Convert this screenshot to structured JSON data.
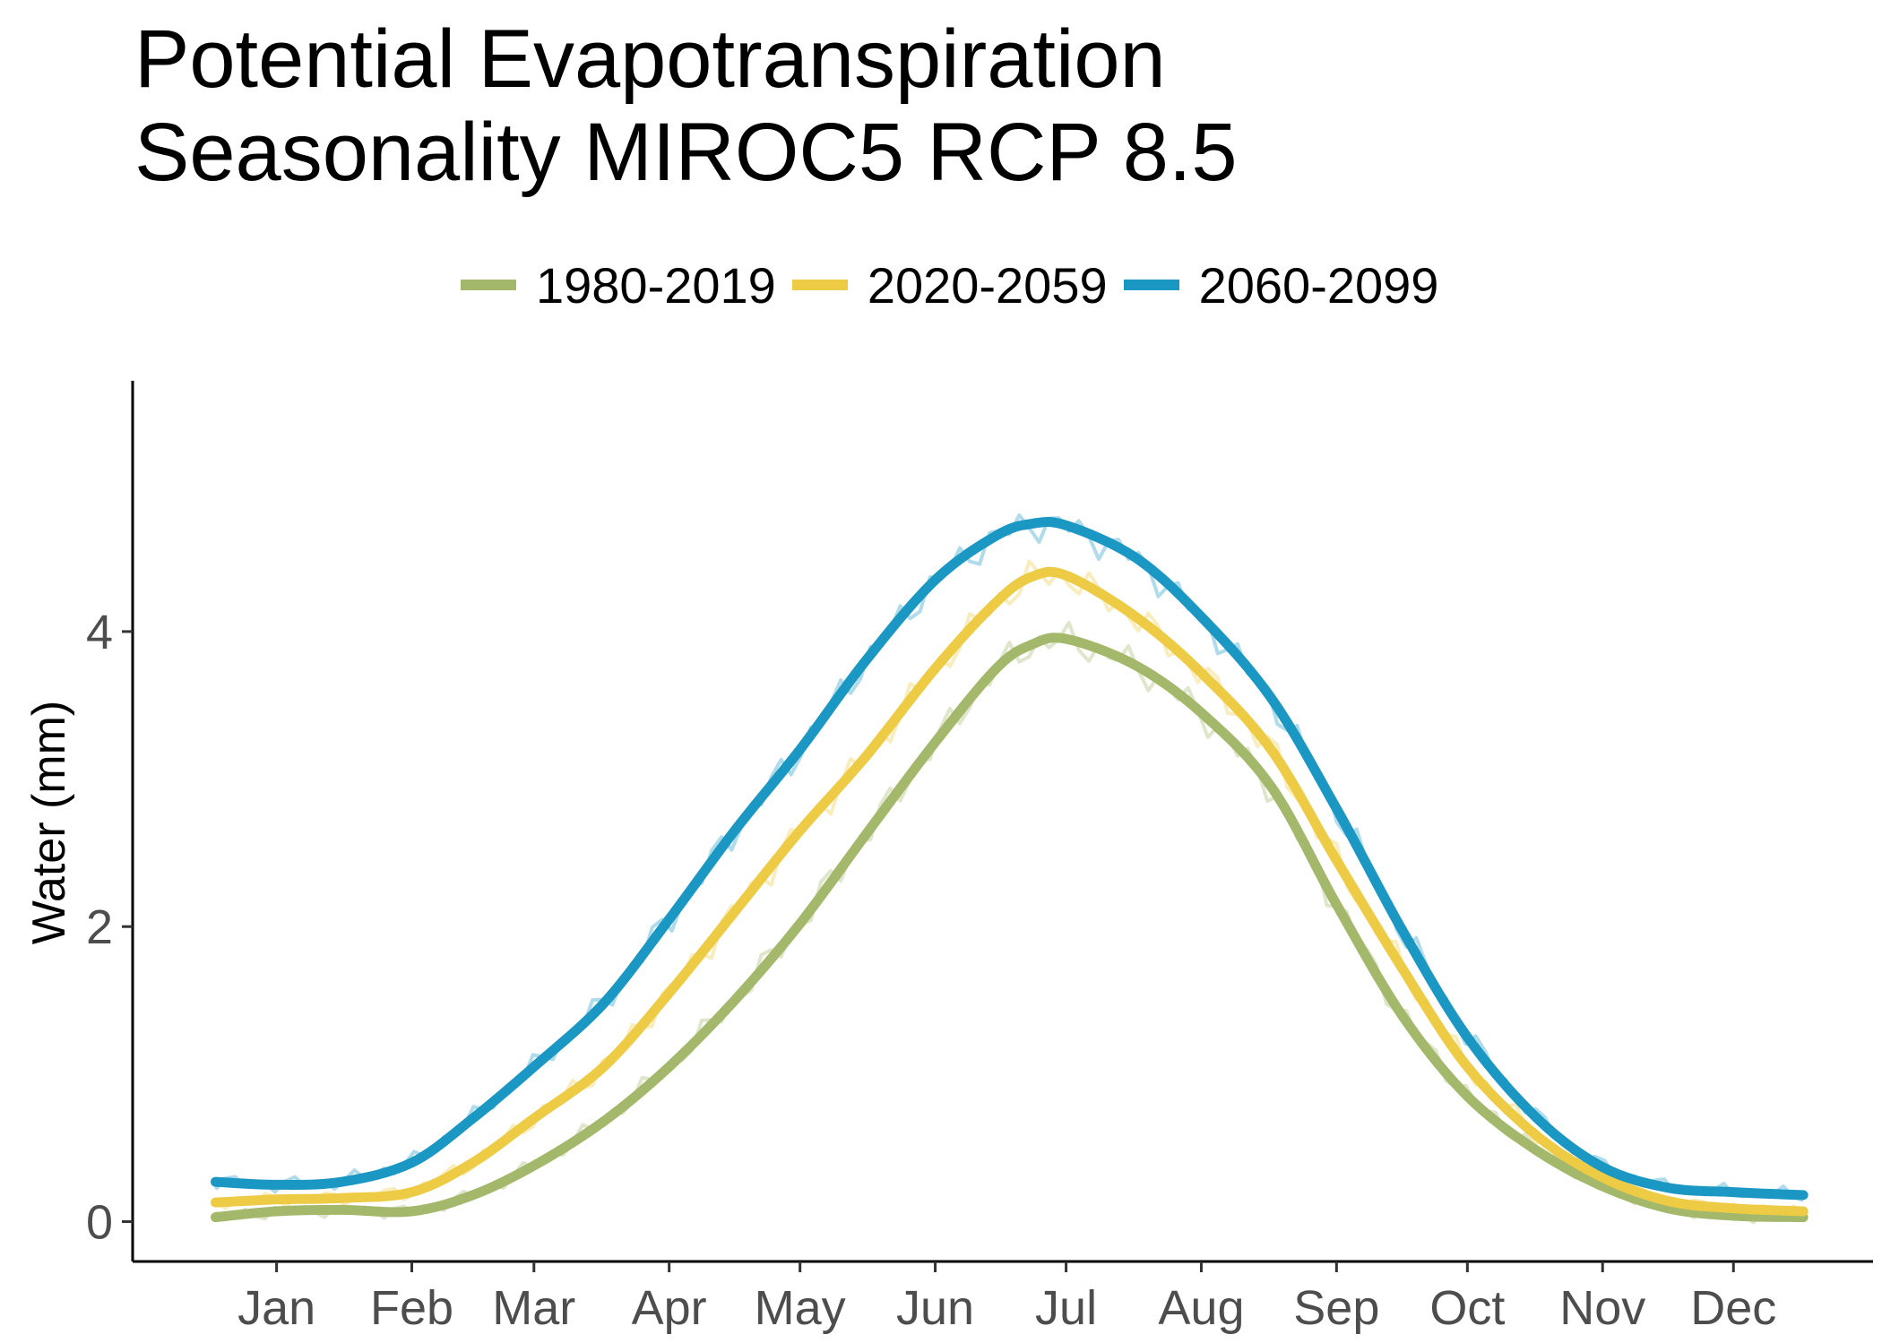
{
  "chart_data": {
    "type": "line",
    "title_lines": [
      "Potential Evapotranspiration",
      "Seasonality MIROC5 RCP 8.5"
    ],
    "xlabel": "",
    "ylabel": "Water (mm)",
    "x_tick_labels": [
      "Jan",
      "Feb",
      "Mar",
      "Apr",
      "May",
      "Jun",
      "Jul",
      "Aug",
      "Sep",
      "Oct",
      "Nov",
      "Dec"
    ],
    "x_ticks_doy": [
      15,
      46,
      74,
      105,
      135,
      166,
      196,
      227,
      258,
      288,
      319,
      349
    ],
    "xlim": [
      -18,
      381
    ],
    "ylim": [
      -0.27,
      5.7
    ],
    "y_ticks": [
      0,
      2,
      4
    ],
    "grid": false,
    "legend_position": "top",
    "x": [
      1,
      15,
      30,
      46,
      60,
      74,
      90,
      105,
      120,
      135,
      150,
      166,
      180,
      188,
      196,
      212,
      227,
      243,
      258,
      273,
      288,
      304,
      319,
      334,
      349,
      365
    ],
    "series": [
      {
        "name": "1980-2019",
        "color": "#a4b86b",
        "values": [
          0.03,
          0.07,
          0.08,
          0.07,
          0.18,
          0.38,
          0.68,
          1.05,
          1.5,
          2.02,
          2.62,
          3.25,
          3.75,
          3.91,
          3.95,
          3.77,
          3.45,
          2.95,
          2.15,
          1.4,
          0.85,
          0.48,
          0.24,
          0.09,
          0.04,
          0.03
        ]
      },
      {
        "name": "2020-2059",
        "color": "#eecb45",
        "values": [
          0.13,
          0.15,
          0.16,
          0.2,
          0.4,
          0.7,
          1.05,
          1.55,
          2.1,
          2.65,
          3.15,
          3.75,
          4.2,
          4.37,
          4.38,
          4.1,
          3.72,
          3.2,
          2.45,
          1.72,
          1.05,
          0.58,
          0.3,
          0.14,
          0.09,
          0.07
        ]
      },
      {
        "name": "2060-2099",
        "color": "#1a97c2",
        "values": [
          0.27,
          0.25,
          0.27,
          0.4,
          0.7,
          1.05,
          1.48,
          2.05,
          2.65,
          3.2,
          3.8,
          4.35,
          4.65,
          4.73,
          4.72,
          4.5,
          4.1,
          3.55,
          2.8,
          1.98,
          1.25,
          0.7,
          0.37,
          0.23,
          0.2,
          0.18
        ]
      }
    ]
  }
}
